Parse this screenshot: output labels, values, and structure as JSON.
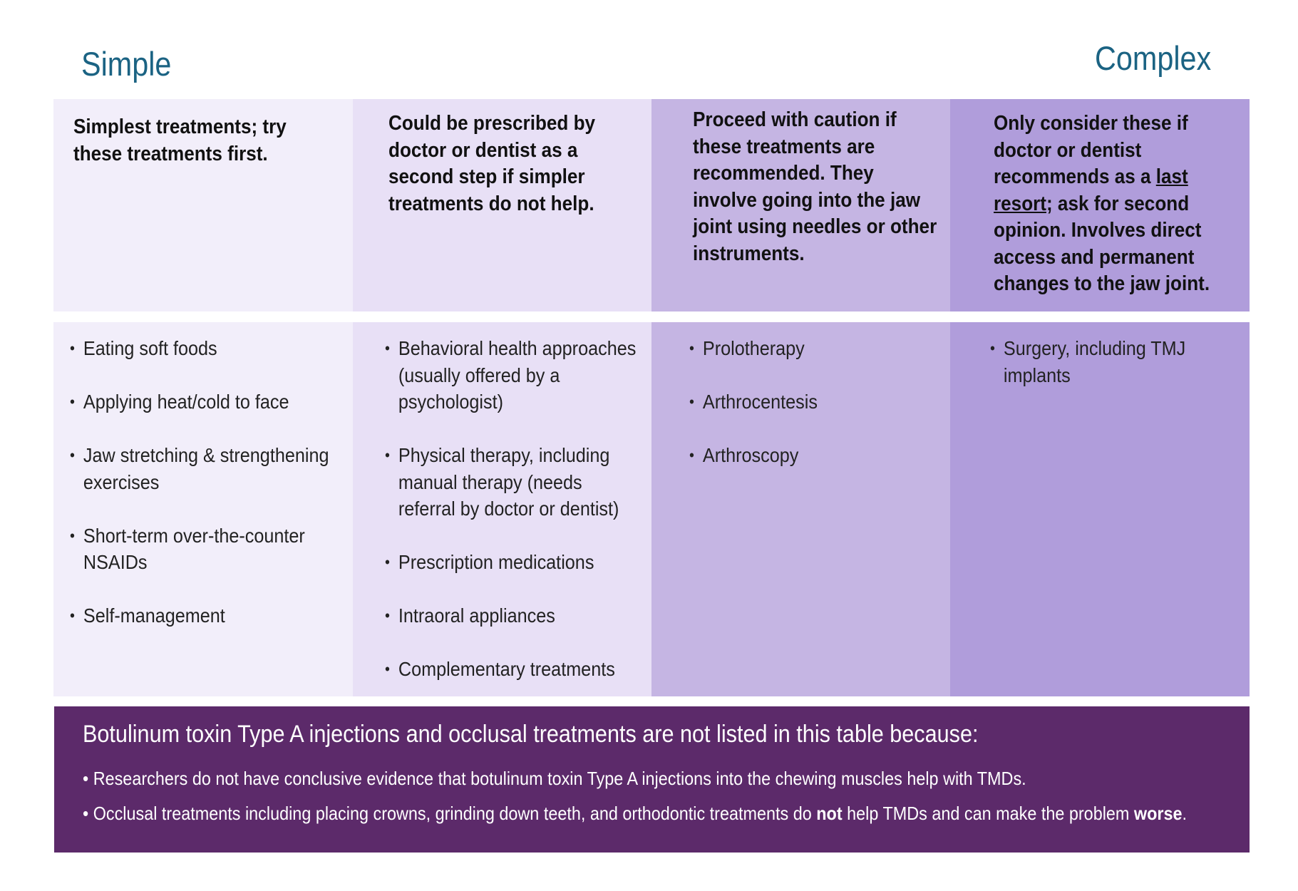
{
  "labels": {
    "left": "Simple",
    "right": "Complex"
  },
  "columns": [
    {
      "header": [
        "Simplest treatments; try these treatments first."
      ],
      "items": [
        "Eating soft foods",
        "Applying heat/cold to face",
        "Jaw stretching & strengthening exercises",
        "Short-term over-the-counter NSAIDs",
        "Self-management"
      ]
    },
    {
      "header": [
        "Could be prescribed by doctor or dentist as a second step if simpler treatments do not help."
      ],
      "items": [
        "Behavioral health approaches (usually offered by a psychologist)",
        "Physical therapy, including manual therapy (needs referral by doctor or dentist)",
        "Prescription medications",
        "Intraoral appliances",
        "Complementary treatments"
      ]
    },
    {
      "header": [
        "Proceed with caution if these treatments are recommended. They involve going into the jaw joint using needles or other instruments."
      ],
      "items": [
        "Prolotherapy",
        "Arthrocentesis",
        "Arthroscopy"
      ]
    },
    {
      "header": [
        "Only consider these if doctor or dentist recommends as a ",
        "last resort",
        "; ask for second opinion. Involves direct access and permanent changes to the jaw joint."
      ],
      "items": [
        "Surgery, including TMJ implants"
      ]
    }
  ],
  "note": {
    "title": "Botulinum toxin Type A injections and occlusal treatments are not listed in this table because:",
    "bullets": [
      [
        "• Researchers do not have conclusive evidence that botulinum toxin Type A injections into the chewing muscles help with TMDs."
      ],
      [
        "• Occlusal treatments including placing crowns, grinding down teeth, and orthodontic treatments do ",
        "not",
        " help TMDs and can make the problem ",
        "worse",
        "."
      ]
    ]
  }
}
